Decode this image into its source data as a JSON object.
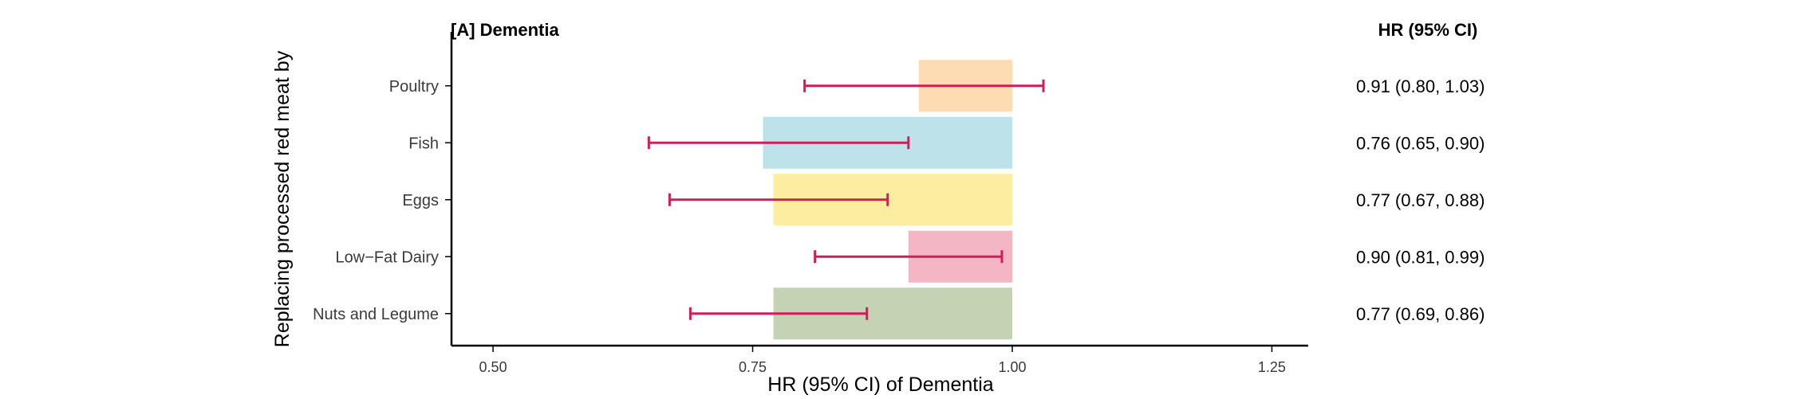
{
  "chart_data": {
    "type": "bar",
    "title": "[A] Dementia",
    "xlabel": "HR (95% CI) of Dementia",
    "ylabel": "Replacing processed red meat by",
    "table_header": "HR (95% CI)",
    "xlim": [
      0.46,
      1.285
    ],
    "reference": 1.0,
    "xticks": [
      0.5,
      0.75,
      1.0,
      1.25
    ],
    "xtick_labels": [
      "0.50",
      "0.75",
      "1.00",
      "1.25"
    ],
    "grid": false,
    "categories": [
      "Poultry",
      "Fish",
      "Eggs",
      "Low−Fat Dairy",
      "Nuts and Legume"
    ],
    "hr": [
      0.91,
      0.76,
      0.77,
      0.9,
      0.77
    ],
    "ci_low": [
      0.8,
      0.65,
      0.67,
      0.81,
      0.69
    ],
    "ci_high": [
      1.03,
      0.9,
      0.88,
      0.99,
      0.86
    ],
    "hr_text": [
      "0.91 (0.80, 1.03)",
      "0.76 (0.65, 0.90)",
      "0.77 (0.67, 0.88)",
      "0.90 (0.81, 0.99)",
      "0.77 (0.69, 0.86)"
    ],
    "bar_colors": [
      "#fddcb4",
      "#bde2ea",
      "#fdeda1",
      "#f4b6c4",
      "#c5d2b3"
    ],
    "error_bar_color": "#d11e5b"
  }
}
